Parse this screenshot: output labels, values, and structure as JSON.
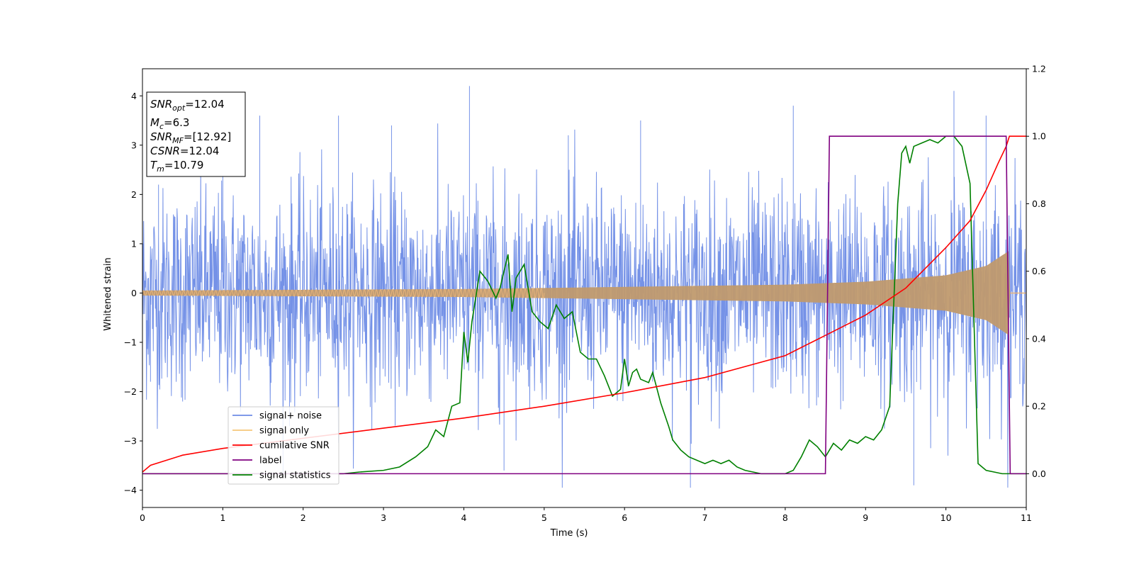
{
  "chart_data": {
    "type": "line",
    "xlabel": "Time (s)",
    "ylabel": "Whitened strain",
    "x_ticks": [
      0,
      1,
      2,
      3,
      4,
      5,
      6,
      7,
      8,
      9,
      10,
      11
    ],
    "xlim": [
      0,
      11
    ],
    "ylim_left": [
      -4.35,
      4.55
    ],
    "y_ticks_left": [
      -4,
      -3,
      -2,
      -1,
      0,
      1,
      2,
      3,
      4
    ],
    "ylim_right": [
      -0.1,
      1.2
    ],
    "y_ticks_right": [
      0.0,
      0.2,
      0.4,
      0.6,
      0.8,
      1.0,
      1.2
    ],
    "y_tick_labels_right": [
      "0.0",
      "0.2",
      "0.4",
      "0.6",
      "0.8",
      "1.0",
      "1.2"
    ],
    "legend_position": "lower-left",
    "info_box": [
      {
        "sym": "SNR",
        "sub": "opt",
        "value": "=12.04"
      },
      {
        "sym": "M",
        "sub": "c",
        "value": "=6.3"
      },
      {
        "sym": "SNR",
        "sub": "MF",
        "value": "=[12.92]"
      },
      {
        "sym": "CSNR",
        "sub": "",
        "value": "=12.04"
      },
      {
        "sym": "T",
        "sub": "m",
        "value": "=10.79"
      }
    ],
    "series": [
      {
        "name": "signal+ noise",
        "axis": "left",
        "color": "#6e8ce6",
        "description_values": {
          "typical_range": [
            -2.6,
            2.6
          ],
          "max": 4.2,
          "min": -3.95
        },
        "samples": [
          [
            0.0,
            1.6
          ],
          [
            0.1,
            -1.8
          ],
          [
            0.2,
            2.2
          ],
          [
            0.5,
            -2.2
          ],
          [
            1.0,
            2.4
          ],
          [
            1.46,
            3.6
          ],
          [
            1.83,
            -2.7
          ],
          [
            2.44,
            3.6
          ],
          [
            3.1,
            3.4
          ],
          [
            4.07,
            4.2
          ],
          [
            4.5,
            -3.6
          ],
          [
            5.3,
            3.2
          ],
          [
            6.2,
            3.5
          ],
          [
            6.82,
            -3.95
          ],
          [
            8.1,
            3.8
          ],
          [
            9.6,
            -3.9
          ],
          [
            10.1,
            4.1
          ],
          [
            10.5,
            3.6
          ],
          [
            10.77,
            -3.8
          ],
          [
            11.0,
            1.5
          ]
        ]
      },
      {
        "name": "signal only",
        "axis": "left",
        "color": "#f6c77a",
        "description_values": {
          "envelope_amplitude": [
            [
              0.0,
              0.05
            ],
            [
              4.0,
              0.08
            ],
            [
              8.0,
              0.17
            ],
            [
              9.0,
              0.23
            ],
            [
              10.0,
              0.36
            ],
            [
              10.5,
              0.55
            ],
            [
              10.78,
              0.85
            ],
            [
              10.79,
              0.0
            ],
            [
              11.0,
              0.0
            ]
          ]
        }
      },
      {
        "name": "cumilative SNR",
        "axis": "right",
        "color": "#ff0000",
        "x": [
          0.0,
          0.1,
          0.5,
          1.0,
          2.0,
          3.0,
          4.0,
          5.0,
          6.0,
          7.0,
          8.0,
          8.5,
          9.0,
          9.5,
          10.0,
          10.3,
          10.5,
          10.65,
          10.75,
          10.79,
          11.0
        ],
        "values": [
          0.005,
          0.025,
          0.055,
          0.075,
          0.105,
          0.135,
          0.165,
          0.2,
          0.24,
          0.285,
          0.35,
          0.41,
          0.47,
          0.55,
          0.67,
          0.75,
          0.84,
          0.92,
          0.97,
          1.0,
          1.0
        ]
      },
      {
        "name": "label",
        "axis": "right",
        "color": "#800080",
        "x": [
          0.0,
          8.5,
          8.55,
          10.75,
          10.8,
          11.0
        ],
        "values": [
          0.0,
          0.0,
          1.0,
          1.0,
          0.0,
          0.0
        ]
      },
      {
        "name": "signal statistics",
        "axis": "right",
        "color": "#008000",
        "x": [
          0.0,
          0.5,
          1.0,
          1.5,
          2.0,
          2.5,
          2.7,
          3.0,
          3.2,
          3.4,
          3.55,
          3.65,
          3.75,
          3.85,
          3.95,
          4.0,
          4.05,
          4.1,
          4.2,
          4.3,
          4.4,
          4.45,
          4.55,
          4.6,
          4.65,
          4.75,
          4.85,
          4.95,
          5.05,
          5.15,
          5.25,
          5.35,
          5.45,
          5.55,
          5.65,
          5.75,
          5.85,
          5.95,
          6.0,
          6.05,
          6.1,
          6.15,
          6.2,
          6.3,
          6.35,
          6.45,
          6.55,
          6.6,
          6.7,
          6.8,
          6.9,
          7.0,
          7.1,
          7.2,
          7.3,
          7.4,
          7.5,
          7.6,
          7.7,
          7.8,
          7.9,
          8.0,
          8.1,
          8.2,
          8.3,
          8.4,
          8.5,
          8.6,
          8.7,
          8.8,
          8.9,
          9.0,
          9.1,
          9.2,
          9.3,
          9.35,
          9.4,
          9.45,
          9.5,
          9.55,
          9.6,
          9.7,
          9.8,
          9.9,
          10.0,
          10.1,
          10.2,
          10.3,
          10.4,
          10.5,
          10.6,
          10.7,
          10.8,
          11.0
        ],
        "values": [
          0.0,
          0.0,
          0.0,
          0.0,
          0.0,
          0.0,
          0.005,
          0.01,
          0.02,
          0.05,
          0.08,
          0.13,
          0.11,
          0.2,
          0.21,
          0.42,
          0.33,
          0.45,
          0.6,
          0.57,
          0.52,
          0.55,
          0.65,
          0.48,
          0.58,
          0.62,
          0.48,
          0.45,
          0.43,
          0.5,
          0.46,
          0.48,
          0.36,
          0.34,
          0.34,
          0.29,
          0.23,
          0.25,
          0.34,
          0.26,
          0.3,
          0.31,
          0.28,
          0.27,
          0.3,
          0.21,
          0.14,
          0.1,
          0.07,
          0.05,
          0.04,
          0.03,
          0.04,
          0.03,
          0.04,
          0.02,
          0.01,
          0.005,
          0.0,
          0.0,
          0.0,
          0.0,
          0.01,
          0.05,
          0.1,
          0.08,
          0.05,
          0.09,
          0.07,
          0.1,
          0.09,
          0.11,
          0.1,
          0.13,
          0.2,
          0.5,
          0.8,
          0.95,
          0.97,
          0.92,
          0.97,
          0.98,
          0.99,
          0.98,
          1.0,
          1.0,
          0.97,
          0.86,
          0.03,
          0.01,
          0.005,
          0.0,
          0.0,
          0.0
        ]
      }
    ]
  }
}
